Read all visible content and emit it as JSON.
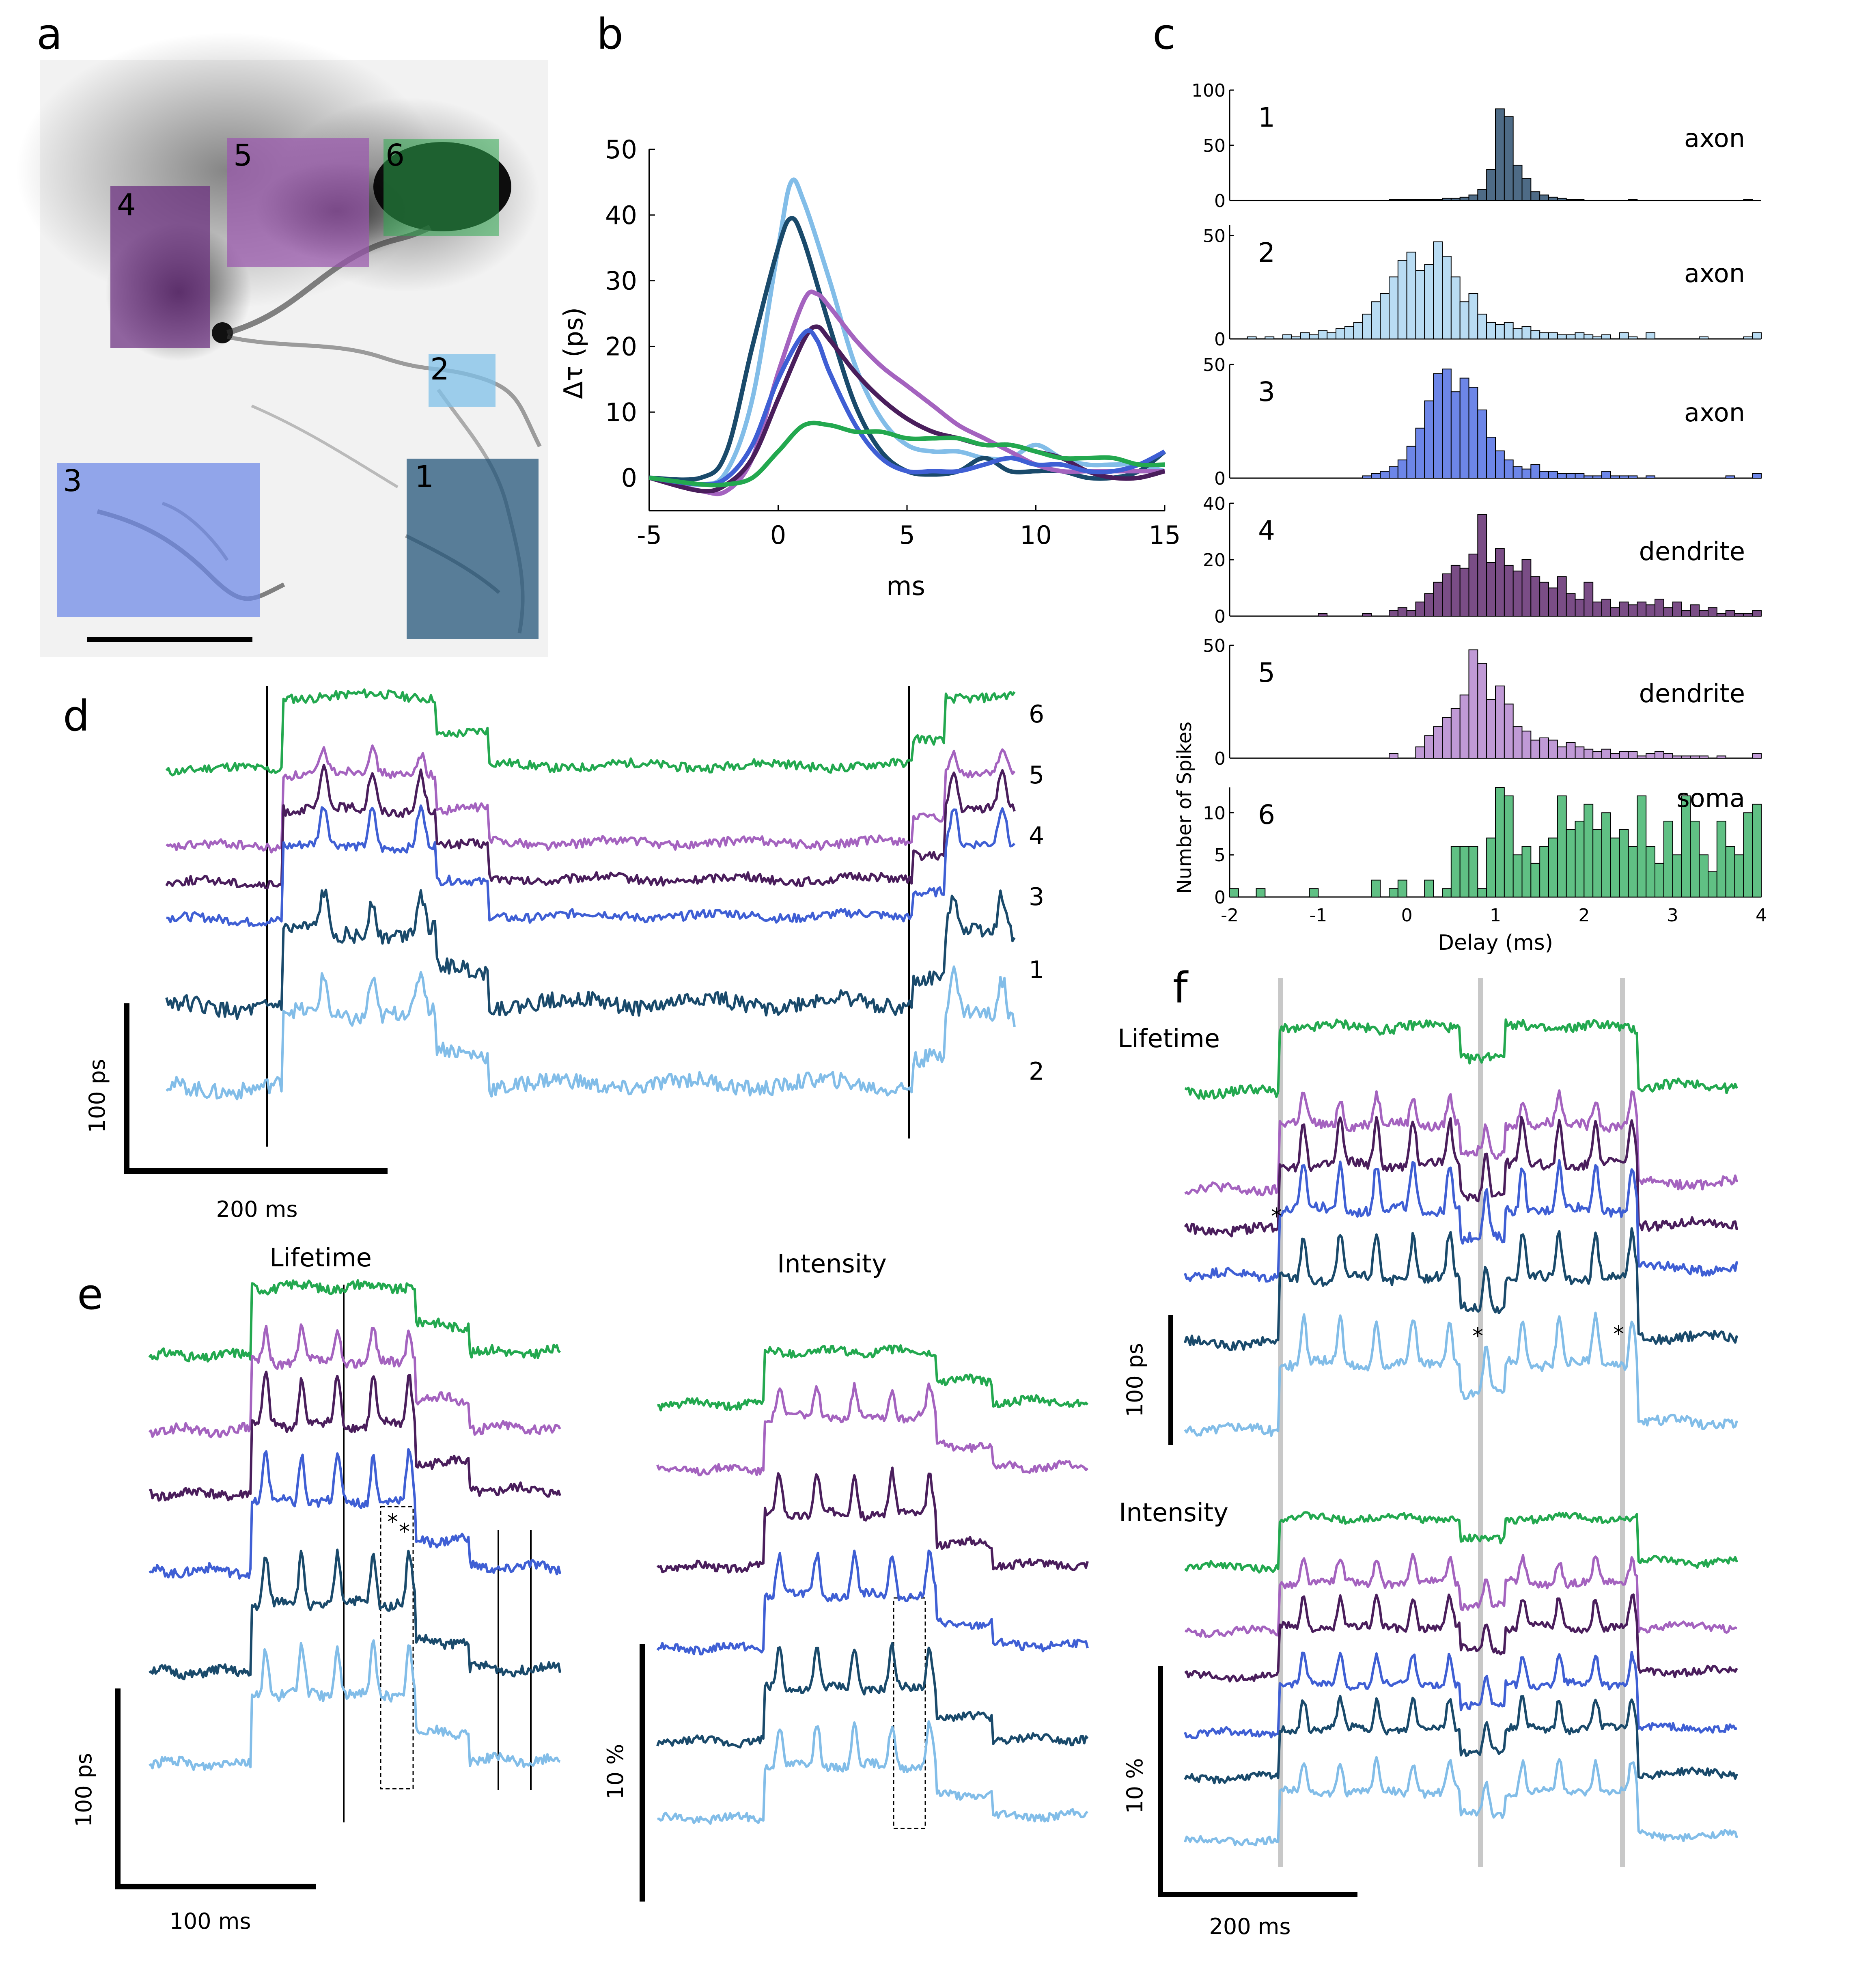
{
  "panels": {
    "a": "a",
    "b": "b",
    "c": "c",
    "d": "d",
    "e": "e",
    "f": "f"
  },
  "colors": {
    "r1": "#1a4a6b",
    "r2": "#82bde8",
    "r3": "#3f5fd4",
    "r4": "#4a1e5c",
    "r5": "#a463bf",
    "r6": "#23a84f",
    "r1_hist": "#4e6b86",
    "r2_hist": "#b9dcf3",
    "r3_hist": "#6d86e8",
    "r4_hist": "#7a4d86",
    "r5_hist": "#c09ad6",
    "r6_hist": "#60c084",
    "r1_box": "#1c4f74",
    "r2_box": "#7fc0e8",
    "r3_box": "#6b86e6",
    "r4_box": "#6a2c7e",
    "r5_box": "#9a58ad",
    "r6_box": "#2ea84e"
  },
  "panel_a": {
    "regions": [
      {
        "id": "1",
        "label": "1",
        "color": "r1_box"
      },
      {
        "id": "2",
        "label": "2",
        "color": "r2_box"
      },
      {
        "id": "3",
        "label": "3",
        "color": "r3_box"
      },
      {
        "id": "4",
        "label": "4",
        "color": "r4_box"
      },
      {
        "id": "5",
        "label": "5",
        "color": "r5_box"
      },
      {
        "id": "6",
        "label": "6",
        "color": "r6_box"
      }
    ]
  },
  "chart_data": [
    {
      "panel": "b",
      "type": "line",
      "xlabel": "ms",
      "ylabel": "Δτ (ps)",
      "xlim": [
        -5,
        15
      ],
      "ylim": [
        -5,
        50
      ],
      "xticks": [
        "-5",
        "0",
        "5",
        "10",
        "15"
      ],
      "yticks": [
        "0",
        "10",
        "20",
        "30",
        "40",
        "50"
      ],
      "series": [
        {
          "name": "2",
          "color": "r2",
          "points": [
            [
              -5,
              0
            ],
            [
              -3,
              -1
            ],
            [
              -2,
              1
            ],
            [
              -1,
              12
            ],
            [
              0,
              35
            ],
            [
              0.5,
              45
            ],
            [
              1,
              42
            ],
            [
              2,
              30
            ],
            [
              3,
              17
            ],
            [
              4,
              9
            ],
            [
              5,
              5
            ],
            [
              6,
              4
            ],
            [
              7,
              4
            ],
            [
              8,
              3
            ],
            [
              9,
              3
            ],
            [
              10,
              5
            ],
            [
              11,
              3
            ],
            [
              12,
              2
            ],
            [
              13,
              2
            ],
            [
              14,
              2
            ],
            [
              15,
              1
            ]
          ]
        },
        {
          "name": "1",
          "color": "r1",
          "points": [
            [
              -5,
              0
            ],
            [
              -3,
              0
            ],
            [
              -2,
              4
            ],
            [
              -1,
              20
            ],
            [
              0,
              35
            ],
            [
              0.5,
              39.5
            ],
            [
              1,
              36
            ],
            [
              2,
              23
            ],
            [
              3,
              11
            ],
            [
              4,
              4
            ],
            [
              5,
              1
            ],
            [
              6,
              0.5
            ],
            [
              7,
              1
            ],
            [
              8,
              3
            ],
            [
              9,
              1
            ],
            [
              10,
              1
            ],
            [
              11,
              1
            ],
            [
              12,
              0
            ],
            [
              13,
              0
            ],
            [
              14,
              1
            ],
            [
              15,
              4
            ]
          ]
        },
        {
          "name": "5",
          "color": "r5",
          "points": [
            [
              -5,
              0
            ],
            [
              -3,
              -2
            ],
            [
              -2,
              -2
            ],
            [
              -1,
              3
            ],
            [
              0,
              16
            ],
            [
              1,
              27
            ],
            [
              1.5,
              28
            ],
            [
              2,
              26
            ],
            [
              3,
              21
            ],
            [
              4,
              17
            ],
            [
              5,
              14
            ],
            [
              6,
              11
            ],
            [
              7,
              8
            ],
            [
              8,
              6
            ],
            [
              9,
              4
            ],
            [
              10,
              2
            ],
            [
              11,
              1
            ],
            [
              12,
              1
            ],
            [
              13,
              1
            ],
            [
              14,
              1
            ],
            [
              15,
              1
            ]
          ]
        },
        {
          "name": "4",
          "color": "r4",
          "points": [
            [
              -5,
              0
            ],
            [
              -3,
              -2
            ],
            [
              -2,
              -1
            ],
            [
              -1,
              3
            ],
            [
              0,
              12
            ],
            [
              1,
              21
            ],
            [
              1.5,
              23
            ],
            [
              2,
              21
            ],
            [
              3,
              16
            ],
            [
              4,
              12
            ],
            [
              5,
              9
            ],
            [
              6,
              7
            ],
            [
              7,
              6
            ],
            [
              8,
              5
            ],
            [
              9,
              5
            ],
            [
              10,
              4
            ],
            [
              11,
              3
            ],
            [
              12,
              1
            ],
            [
              13,
              0
            ],
            [
              14,
              0
            ],
            [
              15,
              1
            ]
          ]
        },
        {
          "name": "3",
          "color": "r3",
          "points": [
            [
              -5,
              0
            ],
            [
              -3,
              -1
            ],
            [
              -2,
              0
            ],
            [
              -1,
              5
            ],
            [
              0,
              15
            ],
            [
              1,
              22
            ],
            [
              1.5,
              21
            ],
            [
              2,
              16
            ],
            [
              3,
              8
            ],
            [
              4,
              3
            ],
            [
              5,
              1
            ],
            [
              6,
              1
            ],
            [
              7,
              1
            ],
            [
              8,
              2
            ],
            [
              9,
              3
            ],
            [
              10,
              2
            ],
            [
              11,
              2
            ],
            [
              12,
              1
            ],
            [
              13,
              1
            ],
            [
              14,
              2
            ],
            [
              15,
              4
            ]
          ]
        },
        {
          "name": "6",
          "color": "r6",
          "points": [
            [
              -5,
              0
            ],
            [
              -3,
              -1
            ],
            [
              -2,
              -1
            ],
            [
              -1,
              0
            ],
            [
              0,
              4
            ],
            [
              1,
              8
            ],
            [
              2,
              8
            ],
            [
              3,
              7
            ],
            [
              4,
              7
            ],
            [
              5,
              6
            ],
            [
              6,
              6
            ],
            [
              7,
              6
            ],
            [
              8,
              5
            ],
            [
              9,
              5
            ],
            [
              10,
              4
            ],
            [
              11,
              3
            ],
            [
              12,
              3
            ],
            [
              13,
              3
            ],
            [
              14,
              2
            ],
            [
              15,
              2
            ]
          ]
        }
      ]
    },
    {
      "panel": "c",
      "type": "bar",
      "xlabel": "Delay (ms)",
      "ylabel": "Number of Spikes",
      "xlim": [
        -2,
        4
      ],
      "xticks": [
        "-2",
        "-1",
        "0",
        "1",
        "2",
        "3",
        "4"
      ],
      "bin_width_ms": 0.1,
      "histograms": [
        {
          "id": "1",
          "label": "axon",
          "color": "r1_hist",
          "yticks": [
            "0",
            "50",
            "100"
          ],
          "ymax": 100,
          "values": [
            0,
            0,
            0,
            0,
            0,
            0,
            0,
            0,
            0,
            0,
            0,
            0,
            0,
            0,
            0,
            0,
            0,
            0,
            1,
            1,
            1,
            1,
            1,
            1,
            2,
            2,
            3,
            5,
            10,
            28,
            83,
            76,
            32,
            20,
            8,
            5,
            3,
            2,
            1,
            1,
            0,
            0,
            0,
            0,
            0,
            1,
            0,
            0,
            0,
            0,
            0,
            0,
            0,
            0,
            0,
            0,
            0,
            0,
            1,
            0
          ]
        },
        {
          "id": "2",
          "label": "axon",
          "color": "r2_hist",
          "yticks": [
            "0",
            "50"
          ],
          "ymax": 55,
          "values": [
            0,
            0,
            1,
            0,
            1,
            0,
            2,
            1,
            3,
            2,
            4,
            3,
            5,
            6,
            8,
            12,
            18,
            22,
            30,
            38,
            42,
            33,
            36,
            47,
            40,
            30,
            18,
            22,
            12,
            8,
            7,
            8,
            5,
            6,
            4,
            3,
            3,
            2,
            2,
            3,
            2,
            1,
            2,
            0,
            3,
            1,
            0,
            3,
            0,
            0,
            0,
            0,
            0,
            1,
            0,
            0,
            0,
            0,
            1,
            3
          ]
        },
        {
          "id": "3",
          "label": "axon",
          "color": "r3_hist",
          "yticks": [
            "0",
            "50"
          ],
          "ymax": 50,
          "values": [
            0,
            0,
            0,
            0,
            0,
            0,
            0,
            0,
            0,
            0,
            0,
            0,
            0,
            0,
            0,
            1,
            2,
            3,
            5,
            8,
            14,
            22,
            34,
            46,
            48,
            38,
            44,
            40,
            30,
            18,
            12,
            8,
            5,
            4,
            6,
            3,
            3,
            2,
            2,
            2,
            1,
            1,
            3,
            1,
            1,
            1,
            0,
            1,
            0,
            0,
            0,
            0,
            0,
            0,
            0,
            0,
            1,
            0,
            0,
            2
          ]
        },
        {
          "id": "4",
          "label": "dendrite",
          "color": "r4_hist",
          "yticks": [
            "0",
            "20",
            "40"
          ],
          "ymax": 40,
          "values": [
            0,
            0,
            0,
            0,
            0,
            0,
            0,
            0,
            0,
            0,
            1,
            0,
            0,
            0,
            0,
            1,
            0,
            0,
            2,
            3,
            2,
            5,
            8,
            12,
            15,
            18,
            17,
            22,
            36,
            19,
            24,
            18,
            16,
            20,
            14,
            12,
            10,
            14,
            8,
            6,
            12,
            5,
            6,
            3,
            5,
            4,
            5,
            4,
            6,
            3,
            5,
            2,
            4,
            2,
            3,
            1,
            2,
            1,
            1,
            2
          ]
        },
        {
          "id": "5",
          "label": "dendrite",
          "color": "r5_hist",
          "yticks": [
            "0",
            "50"
          ],
          "ymax": 50,
          "values": [
            0,
            0,
            0,
            0,
            0,
            0,
            0,
            0,
            0,
            0,
            0,
            0,
            0,
            0,
            0,
            0,
            0,
            0,
            2,
            0,
            0,
            5,
            10,
            14,
            18,
            22,
            28,
            48,
            42,
            26,
            32,
            24,
            14,
            12,
            8,
            9,
            8,
            5,
            7,
            5,
            4,
            3,
            4,
            2,
            3,
            3,
            1,
            2,
            3,
            2,
            1,
            1,
            1,
            1,
            0,
            1,
            0,
            0,
            0,
            2
          ]
        },
        {
          "id": "6",
          "label": "soma",
          "color": "r6_hist",
          "yticks": [
            "0",
            "5",
            "10"
          ],
          "ymax": 13,
          "values": [
            1,
            0,
            0,
            1,
            0,
            0,
            0,
            0,
            0,
            1,
            0,
            0,
            0,
            0,
            0,
            0,
            2,
            0,
            1,
            2,
            0,
            0,
            2,
            0,
            1,
            6,
            6,
            6,
            1,
            7,
            13,
            12,
            5,
            6,
            4,
            6,
            7,
            12,
            8,
            9,
            11,
            8,
            10,
            7,
            8,
            6,
            12,
            6,
            4,
            9,
            5,
            12,
            9,
            5,
            3,
            9,
            6,
            5,
            10,
            11
          ]
        }
      ]
    },
    {
      "panel": "d",
      "type": "line",
      "scalebar_y": "100 ps",
      "scalebar_x": "200 ms",
      "trace_order": [
        "6",
        "5",
        "4",
        "3",
        "1",
        "2"
      ],
      "trace_labels": [
        "6",
        "5",
        "4",
        "3",
        "1",
        "2"
      ]
    },
    {
      "panel": "e",
      "type": "line",
      "title_left": "Lifetime",
      "title_right": "Intensity",
      "scalebar_left_y": "100 ps",
      "scalebar_left_x": "100 ms",
      "scalebar_right_y": "10 %",
      "marks": [
        "*",
        "*"
      ]
    },
    {
      "panel": "f",
      "type": "line",
      "title_top": "Lifetime",
      "title_bottom": "Intensity",
      "scalebar_top_y": "100 ps",
      "scalebar_bottom_y": "10 %",
      "scalebar_x": "200 ms",
      "marks": [
        "*",
        "*",
        "*"
      ]
    }
  ]
}
